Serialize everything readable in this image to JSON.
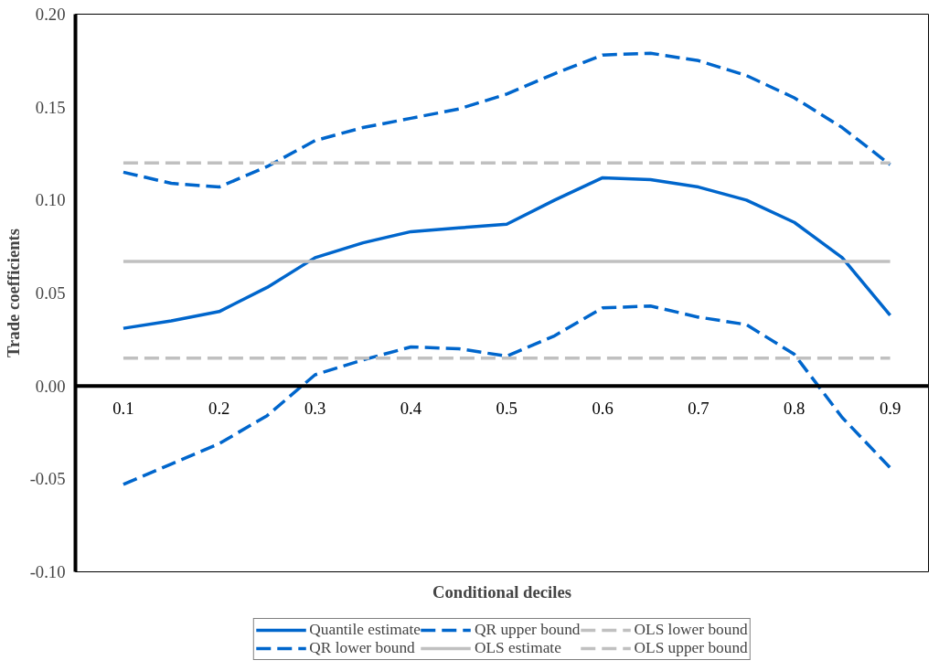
{
  "chart_data": {
    "type": "line",
    "xlabel": "Conditional deciles",
    "ylabel": "Trade coefficients",
    "x": [
      0.1,
      0.15,
      0.2,
      0.25,
      0.3,
      0.35,
      0.4,
      0.45,
      0.5,
      0.55,
      0.6,
      0.65,
      0.7,
      0.75,
      0.8,
      0.85,
      0.9
    ],
    "series": [
      {
        "name": "Quantile estimate",
        "color": "#0066cc",
        "line_style": "solid",
        "values": [
          0.031,
          0.035,
          0.04,
          0.053,
          0.069,
          0.077,
          0.083,
          0.085,
          0.087,
          0.1,
          0.112,
          0.111,
          0.107,
          0.1,
          0.088,
          0.069,
          0.038
        ]
      },
      {
        "name": "QR lower bound",
        "color": "#0066cc",
        "line_style": "dashed",
        "values": [
          -0.053,
          -0.042,
          -0.031,
          -0.016,
          0.006,
          0.014,
          0.021,
          0.02,
          0.016,
          0.027,
          0.042,
          0.043,
          0.037,
          0.033,
          0.017,
          -0.017,
          -0.044
        ]
      },
      {
        "name": "QR upper bound",
        "color": "#0066cc",
        "line_style": "dashed",
        "values": [
          0.115,
          0.109,
          0.107,
          0.118,
          0.132,
          0.139,
          0.144,
          0.149,
          0.157,
          0.168,
          0.178,
          0.179,
          0.175,
          0.167,
          0.155,
          0.139,
          0.119
        ]
      },
      {
        "name": "OLS estimate",
        "color": "#c0c0c0",
        "line_style": "solid",
        "values": [
          0.067,
          0.067,
          0.067,
          0.067,
          0.067,
          0.067,
          0.067,
          0.067,
          0.067,
          0.067,
          0.067,
          0.067,
          0.067,
          0.067,
          0.067,
          0.067,
          0.067
        ]
      },
      {
        "name": "OLS lower bound",
        "color": "#c0c0c0",
        "line_style": "dashed",
        "values": [
          0.015,
          0.015,
          0.015,
          0.015,
          0.015,
          0.015,
          0.015,
          0.015,
          0.015,
          0.015,
          0.015,
          0.015,
          0.015,
          0.015,
          0.015,
          0.015,
          0.015
        ]
      },
      {
        "name": "OLS upper bound",
        "color": "#c0c0c0",
        "line_style": "dashed",
        "values": [
          0.12,
          0.12,
          0.12,
          0.12,
          0.12,
          0.12,
          0.12,
          0.12,
          0.12,
          0.12,
          0.12,
          0.12,
          0.12,
          0.12,
          0.12,
          0.12,
          0.12
        ]
      }
    ],
    "xlim": [
      0.05,
      0.94
    ],
    "ylim": [
      -0.1,
      0.2
    ],
    "xticks": [
      0.1,
      0.2,
      0.3,
      0.4,
      0.5,
      0.6,
      0.7,
      0.8,
      0.9
    ],
    "yticks": [
      {
        "value": -0.1,
        "label": "-0.10"
      },
      {
        "value": -0.05,
        "label": "-0.05"
      },
      {
        "value": 0,
        "label": "0.00"
      },
      {
        "value": 0.05,
        "label": "0.05"
      },
      {
        "value": 0.1,
        "label": "0.10"
      },
      {
        "value": 0.15,
        "label": "0.15"
      },
      {
        "value": 0.2,
        "label": "0.20"
      }
    ],
    "grid": false,
    "legend": "bottom"
  }
}
